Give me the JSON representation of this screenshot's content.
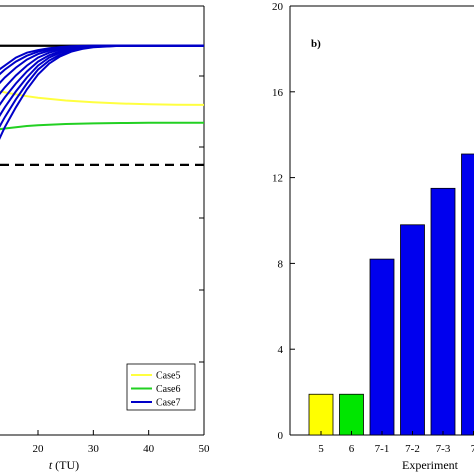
{
  "chart_data": [
    {
      "type": "line",
      "panel": "left",
      "xlabel_italic": "t",
      "xlabel_unit": "(TU)",
      "x_ticks": [
        "20",
        "30",
        "40",
        "50"
      ],
      "xlim": [
        10,
        50
      ],
      "legend": {
        "placement": "bottom-right",
        "entries": [
          "Case5",
          "Case6",
          "Case7"
        ]
      },
      "series": [
        {
          "name": "Case5",
          "color": "#ffff40",
          "x": [
            10,
            12,
            14,
            16,
            18,
            20,
            25,
            30,
            35,
            40,
            45,
            50
          ],
          "y": [
            0.79,
            0.777,
            0.765,
            0.755,
            0.746,
            0.738,
            0.724,
            0.715,
            0.709,
            0.705,
            0.703,
            0.702
          ]
        },
        {
          "name": "Case6",
          "color": "#22d022",
          "x": [
            10,
            12,
            14,
            16,
            18,
            20,
            25,
            30,
            35,
            40,
            45,
            50
          ],
          "y": [
            0.565,
            0.575,
            0.583,
            0.59,
            0.596,
            0.6,
            0.606,
            0.609,
            0.611,
            0.612,
            0.612,
            0.612
          ]
        },
        {
          "name": "Case7",
          "color": "#0000c8",
          "x": [
            10,
            12,
            14,
            16,
            18,
            20,
            22,
            24,
            26,
            28,
            30,
            35,
            40,
            45,
            50
          ],
          "y_curves": [
            [
              0.83,
              0.86,
              0.9,
              0.94,
              0.965,
              0.978,
              0.987,
              0.993,
              0.997,
              0.999,
              1.0,
              1.0,
              1.0,
              1.0,
              1.0
            ],
            [
              0.78,
              0.83,
              0.88,
              0.92,
              0.95,
              0.97,
              0.982,
              0.99,
              0.995,
              0.998,
              1.0,
              1.0,
              1.0,
              1.0,
              1.0
            ],
            [
              0.72,
              0.78,
              0.84,
              0.89,
              0.93,
              0.958,
              0.975,
              0.986,
              0.993,
              0.997,
              0.999,
              1.0,
              1.0,
              1.0,
              1.0
            ],
            [
              0.65,
              0.72,
              0.79,
              0.85,
              0.9,
              0.94,
              0.965,
              0.98,
              0.99,
              0.995,
              0.998,
              1.0,
              1.0,
              1.0,
              1.0
            ],
            [
              0.58,
              0.66,
              0.74,
              0.81,
              0.87,
              0.92,
              0.952,
              0.972,
              0.985,
              0.993,
              0.997,
              1.0,
              1.0,
              1.0,
              1.0
            ],
            [
              0.5,
              0.6,
              0.69,
              0.77,
              0.84,
              0.9,
              0.94,
              0.965,
              0.98,
              0.99,
              0.996,
              1.0,
              1.0,
              1.0,
              1.0
            ],
            [
              0.42,
              0.54,
              0.64,
              0.73,
              0.81,
              0.88,
              0.925,
              0.955,
              0.975,
              0.987,
              0.994,
              1.0,
              1.0,
              1.0,
              1.0
            ],
            [
              0.33,
              0.47,
              0.59,
              0.69,
              0.78,
              0.855,
              0.91,
              0.946,
              0.97,
              0.984,
              0.992,
              1.0,
              1.0,
              1.0,
              1.0
            ]
          ]
        }
      ],
      "reference_lines": [
        {
          "style": "solid",
          "color": "#000000",
          "y": 1.0
        },
        {
          "style": "dashed",
          "color": "#000000",
          "y": 0.4
        }
      ],
      "ylim": [
        -0.96,
        1.2
      ]
    },
    {
      "type": "bar",
      "panel": "right",
      "panel_label": "b)",
      "xlabel": "Experiment",
      "categories": [
        "5",
        "6",
        "7-1",
        "7-2",
        "7-3",
        "7"
      ],
      "values": [
        1.9,
        1.9,
        8.2,
        9.8,
        11.5,
        13.1
      ],
      "colors": [
        "#ffff00",
        "#00e600",
        "#0000ee",
        "#0000ee",
        "#0000ee",
        "#0000ee"
      ],
      "ylim": [
        0,
        20
      ],
      "y_ticks": [
        "0",
        "4",
        "8",
        "12",
        "16",
        "20"
      ],
      "grid": false
    }
  ]
}
